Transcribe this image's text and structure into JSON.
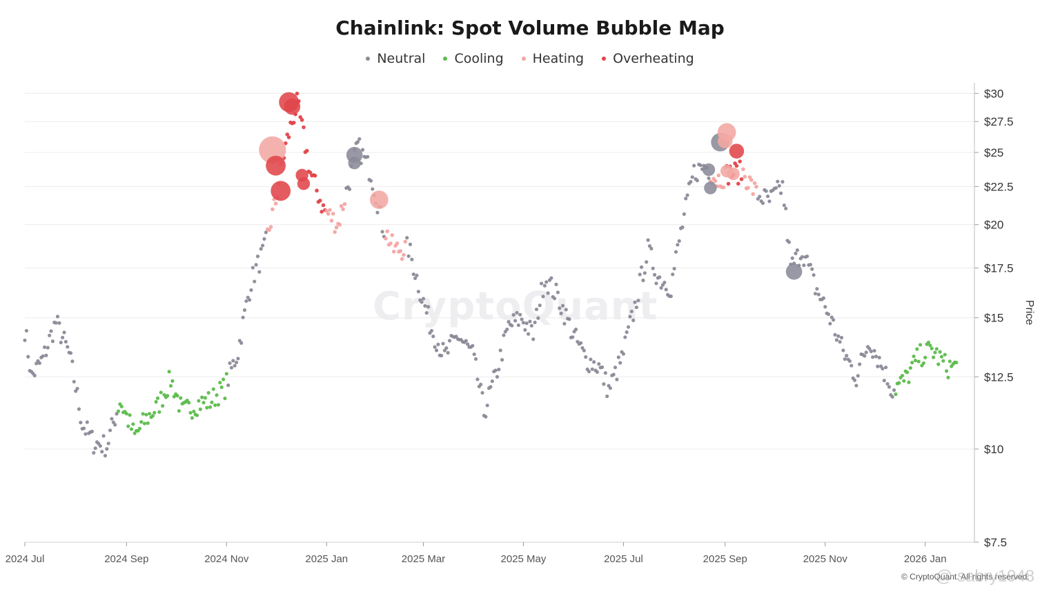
{
  "chart_data": {
    "type": "scatter",
    "title": "Chainlink: Spot Volume Bubble Map",
    "xlabel": "",
    "ylabel": "Price",
    "y_scale": "log",
    "ylim": [
      7.5,
      31
    ],
    "y_ticks": [
      {
        "value": 30,
        "label": "$30"
      },
      {
        "value": 27.5,
        "label": "$27.5"
      },
      {
        "value": 25,
        "label": "$25"
      },
      {
        "value": 22.5,
        "label": "$22.5"
      },
      {
        "value": 20,
        "label": "$20"
      },
      {
        "value": 17.5,
        "label": "$17.5"
      },
      {
        "value": 15,
        "label": "$15"
      },
      {
        "value": 12.5,
        "label": "$12.5"
      },
      {
        "value": 10,
        "label": "$10"
      },
      {
        "value": 7.5,
        "label": "$7.5"
      }
    ],
    "xlim": [
      "2024-07-01",
      "2026-01-31"
    ],
    "x_ticks": [
      {
        "date": "2024-07-01",
        "label": "2024 Jul"
      },
      {
        "date": "2024-09-01",
        "label": "2024 Sep"
      },
      {
        "date": "2024-11-01",
        "label": "2024 Nov"
      },
      {
        "date": "2025-01-01",
        "label": "2025 Jan"
      },
      {
        "date": "2025-03-01",
        "label": "2025 Mar"
      },
      {
        "date": "2025-05-01",
        "label": "2025 May"
      },
      {
        "date": "2025-07-01",
        "label": "2025 Jul"
      },
      {
        "date": "2025-09-01",
        "label": "2025 Sep"
      },
      {
        "date": "2025-11-01",
        "label": "2025 Nov"
      },
      {
        "date": "2026-01-01",
        "label": "2026 Jan"
      }
    ],
    "grid": "horizontal",
    "legend_position": "top",
    "categories": [
      {
        "name": "Neutral",
        "color": "#8b8a98"
      },
      {
        "name": "Cooling",
        "color": "#5cbc4c"
      },
      {
        "name": "Heating",
        "color": "#f2a7a3"
      },
      {
        "name": "Overheating",
        "color": "#e0454a"
      }
    ],
    "anchors": [
      [
        "2024-07-01",
        14.5
      ],
      [
        "2024-07-05",
        12.5
      ],
      [
        "2024-07-12",
        13.2
      ],
      [
        "2024-07-20",
        14.8
      ],
      [
        "2024-07-28",
        13.4
      ],
      [
        "2024-08-05",
        10.8
      ],
      [
        "2024-08-12",
        10.2
      ],
      [
        "2024-08-20",
        10.1
      ],
      [
        "2024-08-28",
        11.6
      ],
      [
        "2024-09-06",
        10.4
      ],
      [
        "2024-09-12",
        10.9
      ],
      [
        "2024-09-20",
        11.4
      ],
      [
        "2024-09-28",
        12.4
      ],
      [
        "2024-10-05",
        11.2
      ],
      [
        "2024-10-14",
        11.5
      ],
      [
        "2024-10-22",
        11.6
      ],
      [
        "2024-10-31",
        12.1
      ],
      [
        "2024-11-08",
        13.5
      ],
      [
        "2024-11-16",
        16.8
      ],
      [
        "2024-11-24",
        18.5
      ],
      [
        "2024-12-01",
        21.5
      ],
      [
        "2024-12-07",
        25.5
      ],
      [
        "2024-12-14",
        29.0
      ],
      [
        "2024-12-22",
        23.5
      ],
      [
        "2024-12-30",
        21.0
      ],
      [
        "2025-01-08",
        20.0
      ],
      [
        "2025-01-15",
        23.0
      ],
      [
        "2025-01-20",
        25.5
      ],
      [
        "2025-01-28",
        23.5
      ],
      [
        "2025-02-04",
        20.0
      ],
      [
        "2025-02-11",
        18.5
      ],
      [
        "2025-02-20",
        18.6
      ],
      [
        "2025-02-28",
        16.0
      ],
      [
        "2025-03-06",
        14.5
      ],
      [
        "2025-03-14",
        13.3
      ],
      [
        "2025-03-22",
        14.2
      ],
      [
        "2025-03-31",
        13.4
      ],
      [
        "2025-04-07",
        11.2
      ],
      [
        "2025-04-14",
        12.5
      ],
      [
        "2025-04-22",
        14.6
      ],
      [
        "2025-04-30",
        15.0
      ],
      [
        "2025-05-07",
        14.2
      ],
      [
        "2025-05-14",
        17.0
      ],
      [
        "2025-05-22",
        16.0
      ],
      [
        "2025-05-31",
        14.3
      ],
      [
        "2025-06-08",
        13.2
      ],
      [
        "2025-06-16",
        12.9
      ],
      [
        "2025-06-22",
        12.0
      ],
      [
        "2025-06-30",
        13.2
      ],
      [
        "2025-07-08",
        15.5
      ],
      [
        "2025-07-16",
        18.5
      ],
      [
        "2025-07-22",
        17.0
      ],
      [
        "2025-07-30",
        16.5
      ],
      [
        "2025-08-06",
        20.0
      ],
      [
        "2025-08-13",
        23.5
      ],
      [
        "2025-08-20",
        24.0
      ],
      [
        "2025-08-27",
        23.0
      ],
      [
        "2025-09-04",
        23.5
      ],
      [
        "2025-09-12",
        23.5
      ],
      [
        "2025-09-20",
        22.0
      ],
      [
        "2025-09-28",
        21.5
      ],
      [
        "2025-10-06",
        22.5
      ],
      [
        "2025-10-11",
        17.5
      ],
      [
        "2025-10-18",
        18.5
      ],
      [
        "2025-10-26",
        16.5
      ],
      [
        "2025-11-04",
        15.0
      ],
      [
        "2025-11-12",
        13.5
      ],
      [
        "2025-11-20",
        12.5
      ],
      [
        "2025-11-28",
        14.0
      ],
      [
        "2025-12-05",
        13.0
      ],
      [
        "2025-12-12",
        12.0
      ],
      [
        "2025-12-20",
        12.4
      ],
      [
        "2025-12-28",
        13.3
      ],
      [
        "2026-01-05",
        13.6
      ],
      [
        "2026-01-14",
        12.9
      ]
    ],
    "regimes": [
      {
        "from": "2024-07-01",
        "to": "2024-08-26",
        "category": "Neutral"
      },
      {
        "from": "2024-08-27",
        "to": "2024-11-01",
        "category": "Cooling"
      },
      {
        "from": "2024-11-02",
        "to": "2024-11-25",
        "category": "Neutral"
      },
      {
        "from": "2024-11-26",
        "to": "2024-12-05",
        "category": "Heating"
      },
      {
        "from": "2024-12-06",
        "to": "2024-12-31",
        "category": "Overheating"
      },
      {
        "from": "2025-01-01",
        "to": "2025-01-12",
        "category": "Heating"
      },
      {
        "from": "2025-01-13",
        "to": "2025-02-05",
        "category": "Neutral"
      },
      {
        "from": "2025-02-06",
        "to": "2025-02-18",
        "category": "Heating"
      },
      {
        "from": "2025-02-19",
        "to": "2025-08-22",
        "category": "Neutral"
      },
      {
        "from": "2025-08-23",
        "to": "2025-09-01",
        "category": "Heating"
      },
      {
        "from": "2025-09-02",
        "to": "2025-09-11",
        "category": "Overheating"
      },
      {
        "from": "2025-09-12",
        "to": "2025-09-20",
        "category": "Heating"
      },
      {
        "from": "2025-09-21",
        "to": "2025-12-13",
        "category": "Neutral"
      },
      {
        "from": "2025-12-14",
        "to": "2026-01-20",
        "category": "Cooling"
      }
    ],
    "bubbles": [
      {
        "date": "2024-11-29",
        "price": 25.2,
        "category": "Heating",
        "size": 3
      },
      {
        "date": "2024-12-01",
        "price": 24.0,
        "category": "Overheating",
        "size": 2
      },
      {
        "date": "2024-12-04",
        "price": 22.2,
        "category": "Overheating",
        "size": 2
      },
      {
        "date": "2024-12-09",
        "price": 29.2,
        "category": "Overheating",
        "size": 2
      },
      {
        "date": "2024-12-11",
        "price": 28.8,
        "category": "Overheating",
        "size": 1.5
      },
      {
        "date": "2024-12-17",
        "price": 23.3,
        "category": "Overheating",
        "size": 1
      },
      {
        "date": "2024-12-18",
        "price": 22.7,
        "category": "Overheating",
        "size": 1
      },
      {
        "date": "2025-01-18",
        "price": 24.8,
        "category": "Neutral",
        "size": 1.5
      },
      {
        "date": "2025-01-18",
        "price": 24.2,
        "category": "Neutral",
        "size": 1
      },
      {
        "date": "2025-02-02",
        "price": 21.6,
        "category": "Heating",
        "size": 1.8
      },
      {
        "date": "2025-08-29",
        "price": 25.8,
        "category": "Neutral",
        "size": 1.8
      },
      {
        "date": "2025-09-02",
        "price": 26.6,
        "category": "Heating",
        "size": 1.8
      },
      {
        "date": "2025-09-01",
        "price": 25.9,
        "category": "Heating",
        "size": 1.3
      },
      {
        "date": "2025-09-08",
        "price": 25.1,
        "category": "Overheating",
        "size": 1.3
      },
      {
        "date": "2025-09-02",
        "price": 23.6,
        "category": "Heating",
        "size": 1
      },
      {
        "date": "2025-09-06",
        "price": 23.4,
        "category": "Heating",
        "size": 1
      },
      {
        "date": "2025-10-13",
        "price": 17.3,
        "category": "Neutral",
        "size": 1.5
      },
      {
        "date": "2025-08-22",
        "price": 23.7,
        "category": "Neutral",
        "size": 1
      },
      {
        "date": "2025-08-23",
        "price": 22.4,
        "category": "Neutral",
        "size": 1
      }
    ]
  },
  "y_axis_title": "Price",
  "watermark": "CryptoQuant",
  "copyright": "© CryptoQuant. All rights reserved.",
  "user_tag": "@ sabry1948"
}
